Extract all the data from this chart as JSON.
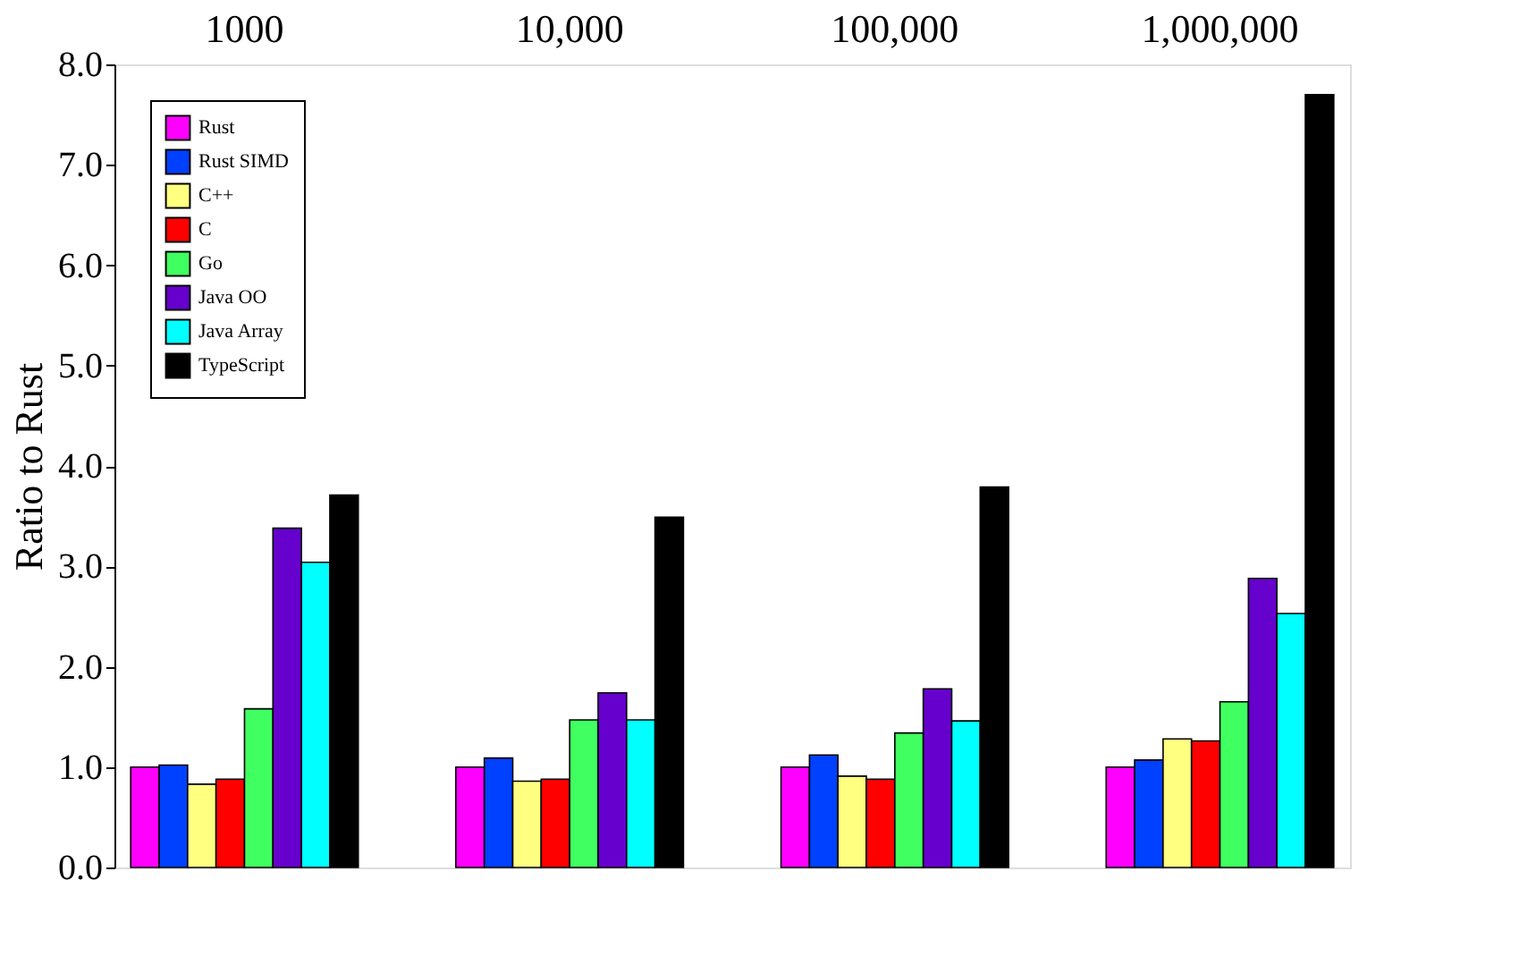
{
  "chart_data": {
    "type": "bar",
    "ylabel": "Ratio to Rust",
    "categories": [
      "1000",
      "10,000",
      "100,000",
      "1,000,000"
    ],
    "series": [
      {
        "name": "Rust",
        "color": "#ff00ff",
        "values": [
          1.0,
          1.0,
          1.0,
          1.0
        ]
      },
      {
        "name": "Rust SIMD",
        "color": "#0040ff",
        "values": [
          1.02,
          1.09,
          1.12,
          1.07
        ]
      },
      {
        "name": "C++",
        "color": "#ffff80",
        "values": [
          0.83,
          0.86,
          0.91,
          1.28
        ]
      },
      {
        "name": "C",
        "color": "#ff0000",
        "values": [
          0.88,
          0.88,
          0.88,
          1.26
        ]
      },
      {
        "name": "Go",
        "color": "#40ff60",
        "values": [
          1.58,
          1.47,
          1.34,
          1.65
        ]
      },
      {
        "name": "Java OO",
        "color": "#6600cc",
        "values": [
          3.38,
          1.74,
          1.78,
          2.88
        ]
      },
      {
        "name": "Java Array",
        "color": "#00ffff",
        "values": [
          3.04,
          1.47,
          1.46,
          2.53
        ]
      },
      {
        "name": "TypeScript",
        "color": "#000000",
        "values": [
          3.71,
          3.49,
          3.79,
          7.7
        ]
      }
    ],
    "ylim": [
      0,
      8
    ],
    "yticks": [
      {
        "value": 0,
        "label": "0.0"
      },
      {
        "value": 1,
        "label": "1.0"
      },
      {
        "value": 2,
        "label": "2.0"
      },
      {
        "value": 3,
        "label": "3.0"
      },
      {
        "value": 4,
        "label": "4.0"
      },
      {
        "value": 5,
        "label": "5.0"
      },
      {
        "value": 6,
        "label": "6.0"
      },
      {
        "value": 7,
        "label": "7.0"
      },
      {
        "value": 8,
        "label": "8.0"
      }
    ],
    "grid": false,
    "legend": "top left"
  }
}
